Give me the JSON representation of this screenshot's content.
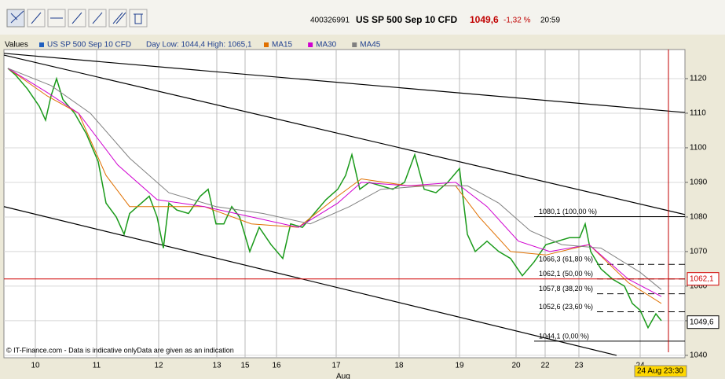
{
  "header": {
    "id": "400326991",
    "instrument": "US SP 500 Sep 10 CFD",
    "price": "1049,6",
    "change": "-1,32 %",
    "time": "20:59"
  },
  "legend_bar": {
    "values_label": "Values",
    "day_range": "Day Low: 1044,4 High: 1065,1"
  },
  "footer": "© IT-Finance.com - Data is indicative onlyData are given as an indication",
  "chart_data": {
    "type": "line",
    "x_label": "Aug",
    "xlim": [
      0,
      867
    ],
    "ylim": [
      1039.3,
      1128.4
    ],
    "xticks": [
      {
        "value": 40,
        "label": "10"
      },
      {
        "value": 118,
        "label": "11"
      },
      {
        "value": 197,
        "label": "12"
      },
      {
        "value": 271,
        "label": "13"
      },
      {
        "value": 307,
        "label": "15"
      },
      {
        "value": 347,
        "label": "16"
      },
      {
        "value": 423,
        "label": "17"
      },
      {
        "value": 503,
        "label": "18"
      },
      {
        "value": 580,
        "label": "19"
      },
      {
        "value": 652,
        "label": "20"
      },
      {
        "value": 689,
        "label": "22"
      },
      {
        "value": 732,
        "label": "23"
      },
      {
        "value": 810,
        "label": "24"
      }
    ],
    "yticks": [
      1040,
      1050,
      1060,
      1070,
      1080,
      1090,
      1100,
      1110,
      1120
    ],
    "grid": true,
    "series": [
      {
        "name": "US SP 500 Sep 10 CFD",
        "color": "#1a9a1a",
        "legend_color": "#1f5fbf",
        "x": [
          5,
          15,
          30,
          45,
          53,
          60,
          67,
          75,
          90,
          105,
          120,
          130,
          143,
          153,
          160,
          170,
          185,
          195,
          203,
          210,
          220,
          235,
          250,
          260,
          270,
          280,
          290,
          300,
          313,
          325,
          340,
          355,
          365,
          380,
          395,
          410,
          425,
          435,
          443,
          453,
          465,
          480,
          495,
          510,
          523,
          535,
          550,
          565,
          580,
          590,
          600,
          615,
          630,
          645,
          660,
          675,
          690,
          705,
          720,
          733,
          740,
          747,
          760,
          775,
          790,
          800,
          810,
          820,
          830,
          837
        ],
        "values": [
          1123,
          1121,
          1117,
          1112,
          1108,
          1115,
          1120,
          1114,
          1110,
          1104,
          1096,
          1084,
          1080,
          1075,
          1081,
          1083,
          1086,
          1080,
          1071,
          1084,
          1082,
          1081,
          1086,
          1088,
          1078,
          1078,
          1083,
          1080,
          1070,
          1077,
          1072,
          1068,
          1078,
          1077,
          1081,
          1085,
          1088,
          1092,
          1098,
          1088,
          1090,
          1089,
          1088,
          1090,
          1098,
          1088,
          1087,
          1090,
          1094,
          1075,
          1070,
          1073,
          1070,
          1068,
          1063,
          1067,
          1072,
          1073,
          1074,
          1074,
          1078,
          1070,
          1065,
          1062,
          1060,
          1055,
          1053,
          1048,
          1052,
          1050
        ]
      },
      {
        "name": "MA15",
        "color": "#e07000",
        "x": [
          5,
          55,
          95,
          130,
          160,
          195,
          255,
          315,
          375,
          425,
          455,
          515,
          575,
          605,
          645,
          690,
          745,
          795,
          837
        ],
        "values": [
          1123,
          1115,
          1110,
          1092,
          1083,
          1083,
          1083,
          1078,
          1077,
          1086,
          1091,
          1089,
          1089,
          1080,
          1070,
          1069,
          1072,
          1061,
          1055
        ]
      },
      {
        "name": "MA30",
        "color": "#d000d0",
        "x": [
          5,
          55,
          95,
          145,
          195,
          255,
          315,
          375,
          425,
          455,
          515,
          575,
          615,
          655,
          695,
          745,
          795,
          837
        ],
        "values": [
          1123,
          1116,
          1110,
          1095,
          1085,
          1083,
          1080,
          1077,
          1084,
          1090,
          1089,
          1090,
          1083,
          1073,
          1070,
          1072,
          1062,
          1057
        ]
      },
      {
        "name": "MA45",
        "color": "#808080",
        "x": [
          5,
          60,
          110,
          160,
          210,
          270,
          330,
          390,
          440,
          480,
          540,
          590,
          630,
          670,
          710,
          760,
          810,
          837
        ],
        "values": [
          1123,
          1118,
          1110,
          1097,
          1087,
          1083,
          1081,
          1078,
          1083,
          1088,
          1089,
          1089,
          1084,
          1076,
          1072,
          1071,
          1064,
          1059
        ]
      }
    ],
    "trendlines": [
      {
        "x": [
          0,
          867
        ],
        "y": [
          1127.3,
          1110.2
        ]
      },
      {
        "x": [
          0,
          867
        ],
        "y": [
          1126.8,
          1080.7
        ]
      },
      {
        "x": [
          0,
          780
        ],
        "y": [
          1083.0,
          1040
        ]
      }
    ],
    "fib_levels": [
      {
        "value": 1080.1,
        "label": "1080,1 (100,00 %)"
      },
      {
        "value": 1066.3,
        "label": "1066,3 (61,80 %)"
      },
      {
        "value": 1062.1,
        "label": "1062,1 (50,00 %)"
      },
      {
        "value": 1057.8,
        "label": "1057,8 (38,20 %)"
      },
      {
        "value": 1052.6,
        "label": "1052,6 (23,60 %)"
      },
      {
        "value": 1044.1,
        "label": "1044,1 (0,00 %)"
      }
    ],
    "price_markers": [
      {
        "value": 1062.1,
        "label": "1062,1",
        "color": "#d00000"
      },
      {
        "value": 1049.6,
        "label": "1049,6",
        "color": "#000000"
      }
    ],
    "cursor": {
      "x": 846,
      "label": "24 Aug 23:30"
    }
  }
}
